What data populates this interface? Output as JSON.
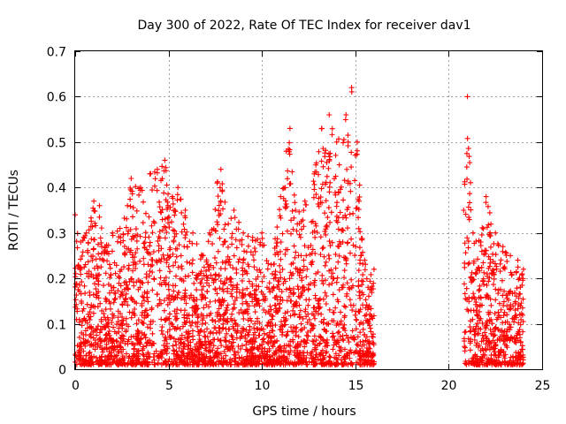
{
  "chart_data": {
    "type": "scatter",
    "title": "Day 300 of 2022, Rate Of TEC Index for receiver dav1",
    "xlabel": "GPS time / hours",
    "ylabel": "ROTI / TECUs",
    "xlim": [
      0,
      25
    ],
    "ylim": [
      0,
      0.7
    ],
    "xticks": [
      0,
      5,
      10,
      15,
      20,
      25
    ],
    "xtick_labels": [
      "0",
      "5",
      "10",
      "15",
      "20",
      "25"
    ],
    "yticks": [
      0,
      0.1,
      0.2,
      0.3,
      0.4,
      0.5,
      0.6,
      0.7
    ],
    "ytick_labels": [
      "0",
      "0.1",
      "0.2",
      "0.3",
      "0.4",
      "0.5",
      "0.6",
      "0.7"
    ],
    "grid": true,
    "legend": "none",
    "marker": "+",
    "color": "#ff0000",
    "data_gaps_hours": [
      [
        16.1,
        20.6
      ]
    ],
    "envelope": [
      {
        "x": 0.0,
        "y": 0.34
      },
      {
        "x": 0.3,
        "y": 0.28
      },
      {
        "x": 0.6,
        "y": 0.3
      },
      {
        "x": 1.0,
        "y": 0.37
      },
      {
        "x": 1.3,
        "y": 0.36
      },
      {
        "x": 1.6,
        "y": 0.27
      },
      {
        "x": 2.0,
        "y": 0.3
      },
      {
        "x": 2.4,
        "y": 0.31
      },
      {
        "x": 2.8,
        "y": 0.36
      },
      {
        "x": 3.0,
        "y": 0.42
      },
      {
        "x": 3.5,
        "y": 0.4
      },
      {
        "x": 4.0,
        "y": 0.43
      },
      {
        "x": 4.4,
        "y": 0.44
      },
      {
        "x": 4.8,
        "y": 0.46
      },
      {
        "x": 5.2,
        "y": 0.38
      },
      {
        "x": 5.5,
        "y": 0.4
      },
      {
        "x": 5.9,
        "y": 0.35
      },
      {
        "x": 6.3,
        "y": 0.3
      },
      {
        "x": 6.8,
        "y": 0.25
      },
      {
        "x": 7.2,
        "y": 0.3
      },
      {
        "x": 7.6,
        "y": 0.41
      },
      {
        "x": 7.8,
        "y": 0.44
      },
      {
        "x": 8.2,
        "y": 0.32
      },
      {
        "x": 8.5,
        "y": 0.35
      },
      {
        "x": 9.0,
        "y": 0.3
      },
      {
        "x": 9.5,
        "y": 0.29
      },
      {
        "x": 10.0,
        "y": 0.3
      },
      {
        "x": 10.5,
        "y": 0.23
      },
      {
        "x": 11.0,
        "y": 0.38
      },
      {
        "x": 11.3,
        "y": 0.48
      },
      {
        "x": 11.5,
        "y": 0.53
      },
      {
        "x": 11.8,
        "y": 0.35
      },
      {
        "x": 12.3,
        "y": 0.37
      },
      {
        "x": 12.8,
        "y": 0.43
      },
      {
        "x": 13.2,
        "y": 0.53
      },
      {
        "x": 13.6,
        "y": 0.56
      },
      {
        "x": 14.0,
        "y": 0.5
      },
      {
        "x": 14.5,
        "y": 0.56
      },
      {
        "x": 14.8,
        "y": 0.62
      },
      {
        "x": 15.1,
        "y": 0.5
      },
      {
        "x": 15.5,
        "y": 0.24
      },
      {
        "x": 16.0,
        "y": 0.22
      },
      {
        "x": 20.8,
        "y": 0.35
      },
      {
        "x": 21.0,
        "y": 0.6
      },
      {
        "x": 21.3,
        "y": 0.3
      },
      {
        "x": 21.7,
        "y": 0.28
      },
      {
        "x": 22.0,
        "y": 0.38
      },
      {
        "x": 22.5,
        "y": 0.3
      },
      {
        "x": 22.9,
        "y": 0.27
      },
      {
        "x": 23.3,
        "y": 0.25
      },
      {
        "x": 23.7,
        "y": 0.24
      },
      {
        "x": 24.0,
        "y": 0.22
      }
    ]
  }
}
